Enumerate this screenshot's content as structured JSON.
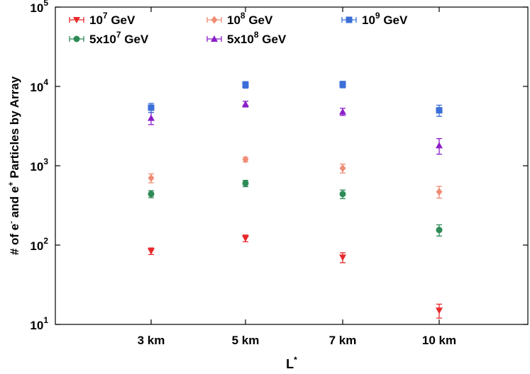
{
  "chart_data": {
    "type": "scatter",
    "title": "",
    "xlabel": "L*",
    "xlabel_base": "L",
    "xlabel_sup": "*",
    "ylabel": "# of e- and e+ Particles by Array",
    "ylabel_parts": {
      "a": "# of e",
      "a_sup": "-",
      "b": " and e",
      "b_sup": "+",
      "c": "  Particles by Array"
    },
    "yscale": "log",
    "ylim": [
      10,
      100000
    ],
    "y_ticks": [
      {
        "base": "10",
        "exp": "1",
        "value": 10
      },
      {
        "base": "10",
        "exp": "2",
        "value": 100
      },
      {
        "base": "10",
        "exp": "3",
        "value": 1000
      },
      {
        "base": "10",
        "exp": "4",
        "value": 10000
      },
      {
        "base": "10",
        "exp": "5",
        "value": 100000
      }
    ],
    "categories": [
      "3 km",
      "5 km",
      "7 km",
      "10 km"
    ],
    "grid": false,
    "legend_position": "top",
    "series": [
      {
        "name": "10^7 GeV",
        "label_base": "10",
        "label_exp": "7",
        "label_tail": " GeV",
        "marker": "triangle-down",
        "color": "#e8292b",
        "values": [
          84,
          122,
          70,
          15
        ],
        "err_low": [
          8,
          12,
          10,
          3
        ],
        "err_high": [
          8,
          12,
          10,
          3
        ]
      },
      {
        "name": "5x10^7 GeV",
        "label_base": "5x10",
        "label_exp": "7",
        "label_tail": " GeV",
        "marker": "circle",
        "color": "#2e8b57",
        "values": [
          440,
          600,
          440,
          155
        ],
        "err_low": [
          45,
          55,
          55,
          25
        ],
        "err_high": [
          45,
          55,
          55,
          25
        ]
      },
      {
        "name": "10^8 GeV",
        "label_base": "10",
        "label_exp": "8",
        "label_tail": " GeV",
        "marker": "diamond",
        "color": "#ef8c74",
        "values": [
          700,
          1200,
          930,
          470
        ],
        "err_low": [
          90,
          80,
          120,
          80
        ],
        "err_high": [
          90,
          80,
          120,
          80
        ]
      },
      {
        "name": "5x10^8 GeV",
        "label_base": "5x10",
        "label_exp": "8",
        "label_tail": " GeV",
        "marker": "triangle-up",
        "color": "#8b1fc9",
        "values": [
          4000,
          6000,
          4800,
          1800
        ],
        "err_low": [
          700,
          500,
          500,
          400
        ],
        "err_high": [
          700,
          500,
          500,
          400
        ]
      },
      {
        "name": "10^9 GeV",
        "label_base": "10",
        "label_exp": "9",
        "label_tail": " GeV",
        "marker": "square",
        "color": "#3b6fd8",
        "values": [
          5400,
          10500,
          10600,
          5000
        ],
        "err_low": [
          700,
          1000,
          1000,
          800
        ],
        "err_high": [
          700,
          1000,
          1000,
          800
        ]
      }
    ]
  }
}
